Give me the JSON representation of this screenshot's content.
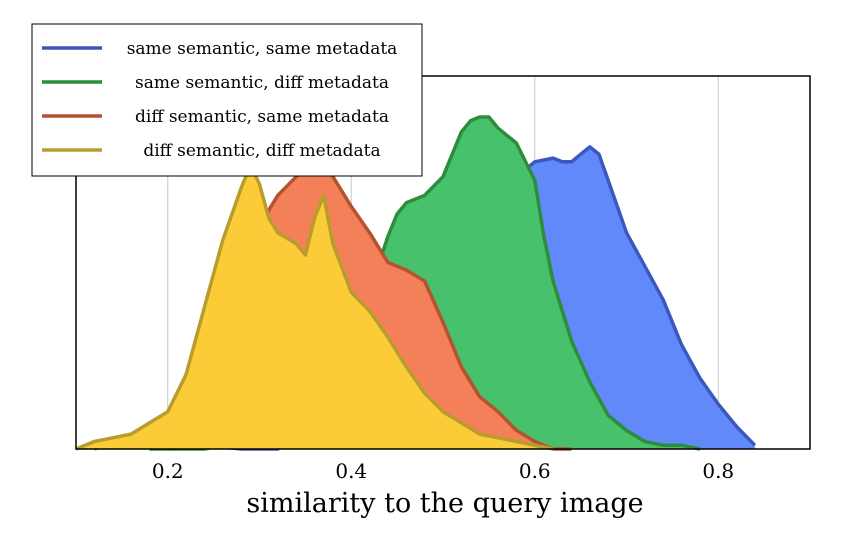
{
  "chart_data": {
    "type": "area",
    "title": "",
    "xlabel": "similarity to the query image",
    "ylabel": "",
    "xlim": [
      0.1,
      0.9
    ],
    "ylim": [
      0,
      1.0
    ],
    "xticks": [
      0.2,
      0.4,
      0.6,
      0.8
    ],
    "xtick_labels": [
      "0.2",
      "0.4",
      "0.6",
      "0.8"
    ],
    "grid": "vertical",
    "legend_position": "top-left",
    "series": [
      {
        "name": "same semantic, same metadata",
        "color": "#3b57c0",
        "fill": "#6189fa",
        "x": [
          0.2,
          0.24,
          0.28,
          0.3,
          0.32,
          0.34,
          0.36,
          0.38,
          0.4,
          0.42,
          0.44,
          0.45,
          0.46,
          0.48,
          0.5,
          0.52,
          0.54,
          0.56,
          0.58,
          0.6,
          0.62,
          0.63,
          0.64,
          0.65,
          0.66,
          0.67,
          0.68,
          0.7,
          0.72,
          0.74,
          0.76,
          0.78,
          0.8,
          0.82,
          0.84
        ],
        "y": [
          0.0,
          0.01,
          0.0,
          0.0,
          0.0,
          0.03,
          0.05,
          0.07,
          0.08,
          0.1,
          0.15,
          0.22,
          0.3,
          0.4,
          0.47,
          0.55,
          0.62,
          0.68,
          0.73,
          0.77,
          0.78,
          0.77,
          0.77,
          0.79,
          0.81,
          0.79,
          0.72,
          0.58,
          0.49,
          0.4,
          0.28,
          0.19,
          0.12,
          0.06,
          0.01
        ]
      },
      {
        "name": "same semantic, diff metadata",
        "color": "#2e8d3a",
        "fill": "#47c16b",
        "x": [
          0.18,
          0.2,
          0.22,
          0.24,
          0.26,
          0.28,
          0.3,
          0.32,
          0.34,
          0.36,
          0.38,
          0.4,
          0.42,
          0.44,
          0.45,
          0.46,
          0.48,
          0.5,
          0.51,
          0.52,
          0.53,
          0.54,
          0.55,
          0.56,
          0.58,
          0.6,
          0.61,
          0.62,
          0.63,
          0.64,
          0.66,
          0.68,
          0.7,
          0.72,
          0.74,
          0.76,
          0.78
        ],
        "y": [
          0.0,
          0.0,
          0.0,
          0.0,
          0.01,
          0.02,
          0.04,
          0.07,
          0.1,
          0.14,
          0.2,
          0.3,
          0.42,
          0.57,
          0.63,
          0.66,
          0.68,
          0.73,
          0.79,
          0.85,
          0.88,
          0.89,
          0.89,
          0.86,
          0.82,
          0.72,
          0.57,
          0.45,
          0.37,
          0.29,
          0.18,
          0.09,
          0.05,
          0.02,
          0.01,
          0.01,
          0.0
        ]
      },
      {
        "name": "diff semantic, same metadata",
        "color": "#b5522f",
        "fill": "#f38058",
        "x": [
          0.12,
          0.14,
          0.16,
          0.18,
          0.2,
          0.22,
          0.24,
          0.26,
          0.28,
          0.29,
          0.3,
          0.31,
          0.32,
          0.34,
          0.36,
          0.37,
          0.38,
          0.39,
          0.4,
          0.42,
          0.44,
          0.46,
          0.48,
          0.5,
          0.52,
          0.54,
          0.56,
          0.58,
          0.6,
          0.62,
          0.64
        ],
        "y": [
          0.0,
          0.02,
          0.02,
          0.02,
          0.04,
          0.07,
          0.13,
          0.22,
          0.33,
          0.44,
          0.56,
          0.64,
          0.68,
          0.73,
          0.77,
          0.77,
          0.73,
          0.69,
          0.65,
          0.58,
          0.5,
          0.48,
          0.45,
          0.34,
          0.22,
          0.14,
          0.1,
          0.05,
          0.02,
          0.0,
          0.0
        ]
      },
      {
        "name": "diff semantic, diff metadata",
        "color": "#b89d2c",
        "fill": "#fccc38",
        "x": [
          0.1,
          0.12,
          0.14,
          0.16,
          0.18,
          0.2,
          0.22,
          0.24,
          0.26,
          0.28,
          0.29,
          0.3,
          0.31,
          0.32,
          0.34,
          0.35,
          0.36,
          0.37,
          0.38,
          0.4,
          0.42,
          0.44,
          0.46,
          0.48,
          0.5,
          0.52,
          0.54,
          0.56,
          0.58,
          0.6,
          0.62
        ],
        "y": [
          0.0,
          0.02,
          0.03,
          0.04,
          0.07,
          0.1,
          0.2,
          0.38,
          0.56,
          0.7,
          0.76,
          0.71,
          0.62,
          0.58,
          0.55,
          0.52,
          0.62,
          0.68,
          0.55,
          0.42,
          0.37,
          0.3,
          0.22,
          0.15,
          0.1,
          0.07,
          0.04,
          0.03,
          0.02,
          0.01,
          0.0
        ]
      }
    ]
  }
}
